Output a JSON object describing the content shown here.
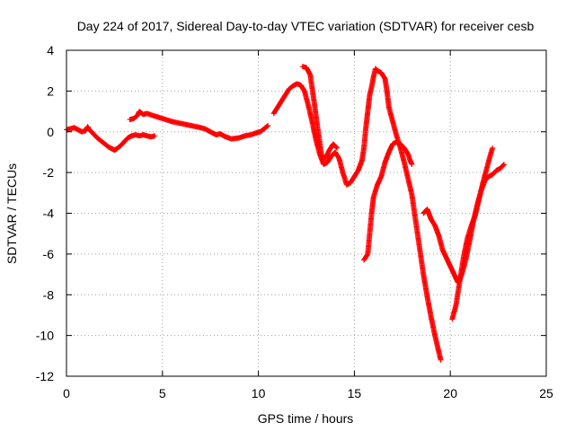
{
  "chart_data": {
    "type": "scatter",
    "title": "Day 224 of 2017, Sidereal Day-to-day VTEC variation (SDTVAR) for receiver cesb",
    "xlabel": "GPS time / hours",
    "ylabel": "SDTVAR / TECUs",
    "xlim": [
      0,
      25
    ],
    "ylim": [
      -12,
      4
    ],
    "xticks": [
      0,
      5,
      10,
      15,
      20,
      25
    ],
    "yticks": [
      -12,
      -10,
      -8,
      -6,
      -4,
      -2,
      0,
      2,
      4
    ],
    "grid": true,
    "marker": "+",
    "color": "#ff0000",
    "series": [
      {
        "values": [
          [
            0.0,
            0.1
          ],
          [
            0.2,
            0.15
          ],
          [
            0.4,
            0.2
          ],
          [
            0.6,
            0.1
          ],
          [
            0.8,
            0.0
          ],
          [
            1.0,
            0.05
          ],
          [
            1.1,
            0.25
          ],
          [
            1.2,
            0.1
          ],
          [
            1.4,
            -0.1
          ],
          [
            1.6,
            -0.3
          ],
          [
            1.8,
            -0.45
          ],
          [
            2.0,
            -0.6
          ],
          [
            2.2,
            -0.75
          ],
          [
            2.4,
            -0.85
          ],
          [
            2.5,
            -0.9
          ],
          [
            2.6,
            -0.85
          ],
          [
            2.8,
            -0.7
          ],
          [
            3.0,
            -0.5
          ],
          [
            3.2,
            -0.3
          ],
          [
            3.4,
            -0.2
          ],
          [
            3.6,
            -0.15
          ],
          [
            3.8,
            -0.2
          ],
          [
            4.0,
            -0.15
          ],
          [
            4.2,
            -0.2
          ],
          [
            4.4,
            -0.25
          ],
          [
            4.6,
            -0.2
          ]
        ]
      },
      {
        "values": [
          [
            3.3,
            0.6
          ],
          [
            3.5,
            0.65
          ],
          [
            3.7,
            0.8
          ],
          [
            3.8,
            1.0
          ],
          [
            4.0,
            0.85
          ],
          [
            4.2,
            0.9
          ],
          [
            4.5,
            0.8
          ],
          [
            5.0,
            0.65
          ],
          [
            5.5,
            0.5
          ],
          [
            6.0,
            0.4
          ],
          [
            6.5,
            0.3
          ],
          [
            7.0,
            0.2
          ],
          [
            7.2,
            0.15
          ],
          [
            7.5,
            0.0
          ],
          [
            7.8,
            -0.15
          ],
          [
            8.0,
            -0.1
          ],
          [
            8.3,
            -0.25
          ],
          [
            8.6,
            -0.35
          ],
          [
            9.0,
            -0.3
          ],
          [
            9.3,
            -0.2
          ],
          [
            9.6,
            -0.15
          ],
          [
            9.9,
            -0.05
          ],
          [
            10.1,
            0.0
          ],
          [
            10.3,
            0.15
          ],
          [
            10.5,
            0.3
          ]
        ]
      },
      {
        "values": [
          [
            10.8,
            0.9
          ],
          [
            11.0,
            1.2
          ],
          [
            11.2,
            1.5
          ],
          [
            11.4,
            1.8
          ],
          [
            11.6,
            2.1
          ],
          [
            11.8,
            2.25
          ],
          [
            12.0,
            2.35
          ],
          [
            12.2,
            2.3
          ],
          [
            12.4,
            2.0
          ],
          [
            12.6,
            1.3
          ],
          [
            12.8,
            0.5
          ],
          [
            13.0,
            -0.4
          ],
          [
            13.2,
            -1.1
          ],
          [
            13.4,
            -1.6
          ],
          [
            13.6,
            -1.5
          ],
          [
            13.8,
            -1.2
          ],
          [
            14.0,
            -1.0
          ],
          [
            14.2,
            -1.3
          ],
          [
            14.4,
            -2.0
          ],
          [
            14.6,
            -2.6
          ],
          [
            14.8,
            -2.5
          ],
          [
            15.0,
            -2.2
          ],
          [
            15.2,
            -1.9
          ],
          [
            15.4,
            -1.4
          ],
          [
            15.5,
            -0.8
          ],
          [
            15.6,
            0.2
          ],
          [
            15.7,
            1.0
          ],
          [
            15.8,
            1.8
          ],
          [
            15.9,
            2.2
          ],
          [
            16.0,
            2.7
          ],
          [
            16.1,
            3.1
          ],
          [
            16.2,
            3.0
          ],
          [
            16.4,
            2.9
          ],
          [
            16.6,
            2.6
          ],
          [
            16.7,
            2.0
          ],
          [
            16.8,
            1.2
          ],
          [
            17.0,
            0.5
          ],
          [
            17.2,
            -0.2
          ],
          [
            17.4,
            -0.8
          ],
          [
            17.6,
            -1.5
          ],
          [
            17.8,
            -2.3
          ],
          [
            18.0,
            -3.1
          ],
          [
            18.2,
            -4.4
          ],
          [
            18.4,
            -5.7
          ],
          [
            18.6,
            -7.0
          ],
          [
            18.8,
            -8.1
          ],
          [
            19.0,
            -9.1
          ],
          [
            19.2,
            -10.0
          ],
          [
            19.4,
            -10.8
          ],
          [
            19.5,
            -11.2
          ]
        ]
      },
      {
        "values": [
          [
            12.3,
            3.2
          ],
          [
            12.5,
            3.15
          ],
          [
            12.7,
            2.8
          ],
          [
            12.9,
            1.5
          ],
          [
            13.1,
            0.1
          ],
          [
            13.3,
            -1.2
          ],
          [
            13.5,
            -1.3
          ],
          [
            13.7,
            -0.9
          ],
          [
            13.9,
            -0.6
          ],
          [
            14.1,
            -0.8
          ]
        ]
      },
      {
        "values": [
          [
            15.5,
            -6.3
          ],
          [
            15.7,
            -6.0
          ],
          [
            15.8,
            -5.0
          ],
          [
            15.9,
            -4.0
          ],
          [
            16.0,
            -3.2
          ],
          [
            16.2,
            -2.6
          ],
          [
            16.4,
            -2.2
          ],
          [
            16.6,
            -1.5
          ],
          [
            16.8,
            -1.0
          ],
          [
            17.0,
            -0.6
          ],
          [
            17.2,
            -0.5
          ],
          [
            17.4,
            -0.6
          ],
          [
            17.6,
            -0.8
          ],
          [
            17.8,
            -1.1
          ],
          [
            17.9,
            -1.4
          ],
          [
            18.0,
            -1.6
          ]
        ]
      },
      {
        "values": [
          [
            18.6,
            -4.0
          ],
          [
            18.8,
            -3.8
          ],
          [
            19.0,
            -4.3
          ],
          [
            19.2,
            -4.6
          ],
          [
            19.4,
            -5.1
          ],
          [
            19.6,
            -5.8
          ],
          [
            19.8,
            -6.2
          ],
          [
            20.0,
            -6.6
          ],
          [
            20.2,
            -7.0
          ],
          [
            20.4,
            -7.4
          ],
          [
            20.6,
            -7.0
          ],
          [
            20.8,
            -6.3
          ],
          [
            21.0,
            -5.4
          ],
          [
            21.2,
            -4.4
          ],
          [
            21.4,
            -3.6
          ],
          [
            21.6,
            -2.9
          ],
          [
            21.8,
            -2.4
          ],
          [
            22.0,
            -2.2
          ],
          [
            22.2,
            -2.1
          ],
          [
            22.4,
            -1.9
          ],
          [
            22.6,
            -1.8
          ],
          [
            22.8,
            -1.6
          ]
        ]
      },
      {
        "values": [
          [
            20.1,
            -9.2
          ],
          [
            20.3,
            -8.5
          ],
          [
            20.5,
            -7.3
          ],
          [
            20.7,
            -6.1
          ],
          [
            20.9,
            -5.2
          ],
          [
            21.1,
            -4.6
          ],
          [
            21.3,
            -4.1
          ],
          [
            21.5,
            -3.3
          ],
          [
            21.7,
            -2.5
          ],
          [
            21.9,
            -1.8
          ],
          [
            22.1,
            -1.1
          ],
          [
            22.2,
            -0.8
          ]
        ]
      }
    ]
  }
}
